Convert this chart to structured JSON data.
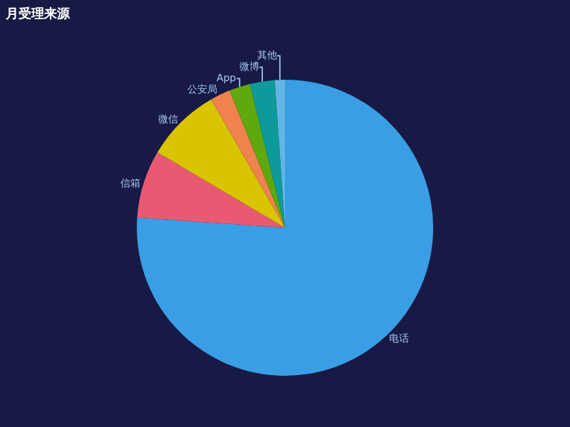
{
  "chart_data": {
    "type": "pie",
    "title": "月受理来源",
    "categories": [
      "电话",
      "信箱",
      "微信",
      "公安局",
      "App",
      "微博",
      "其他"
    ],
    "values": [
      76.1,
      7.4,
      8.2,
      2.2,
      2.3,
      2.7,
      1.1
    ],
    "colors": [
      "#3a9ee4",
      "#e85a71",
      "#d9c400",
      "#f0824e",
      "#5fa80e",
      "#0e9a9a",
      "#64b5e6"
    ],
    "legend": false
  }
}
